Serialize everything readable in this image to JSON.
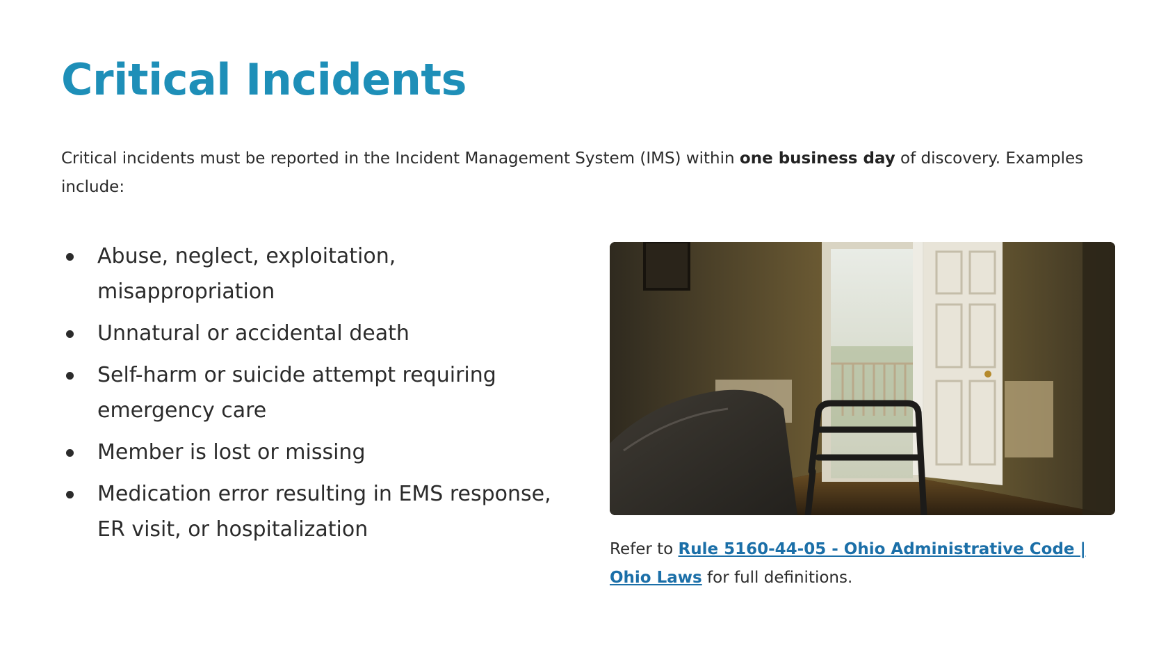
{
  "slide": {
    "title": "Critical Incidents",
    "intro": {
      "before": "Critical incidents must be reported in the Incident Management System (IMS) within ",
      "bold": "one business day",
      "after": " of discovery. Examples include:"
    },
    "bullets": [
      "Abuse, neglect, exploitation, misappropriation",
      "Unnatural or accidental death",
      "Self-harm or suicide attempt requiring emergency care",
      "Member is lost or missing",
      "Medication error resulting in EMS response, ER visit, or hospitalization"
    ],
    "reference": {
      "prefix": "Refer to ",
      "link_text": "Rule 5160-44-05 - Ohio Administrative Code | Ohio Laws",
      "suffix": " for full definitions."
    }
  },
  "colors": {
    "title": "#1e8fb8",
    "link": "#1b6fa8",
    "text": "#2b2b2b"
  }
}
